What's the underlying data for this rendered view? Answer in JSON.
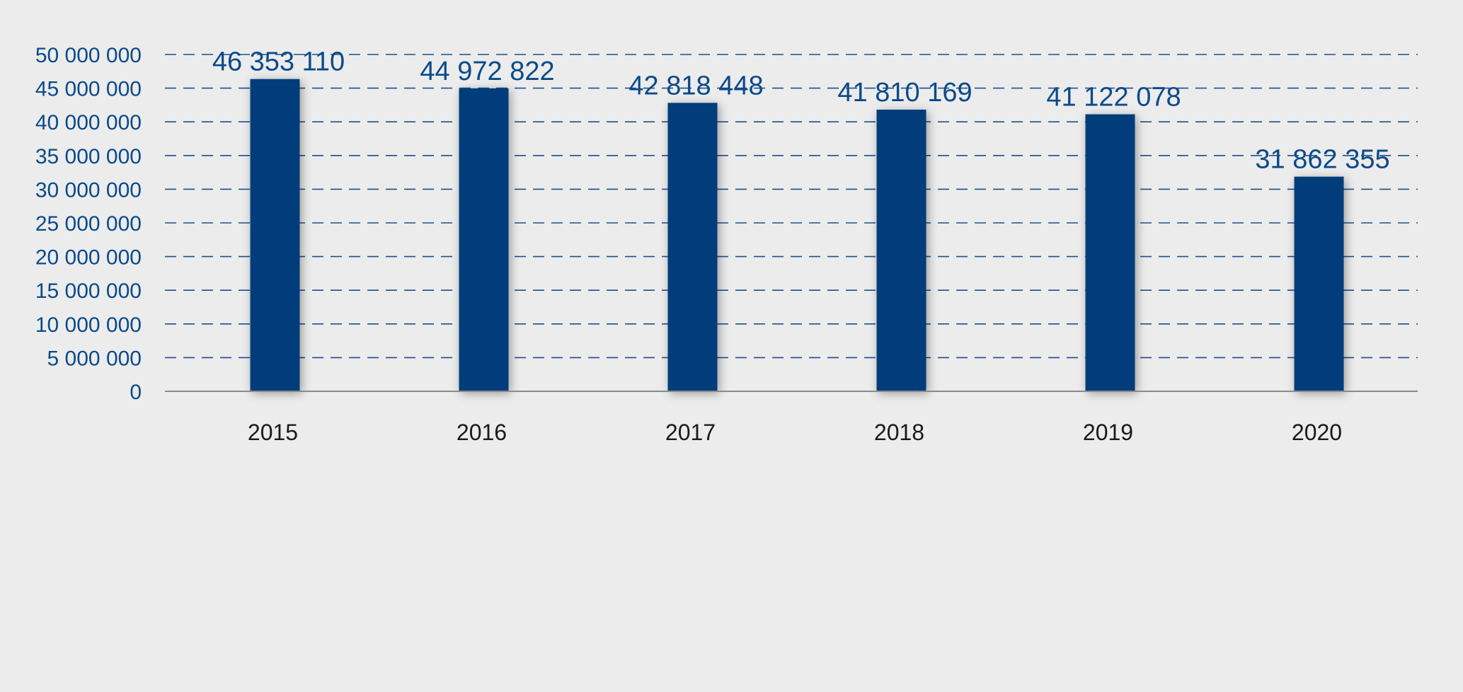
{
  "chart_data": {
    "type": "bar",
    "categories": [
      "2015",
      "2016",
      "2017",
      "2018",
      "2019",
      "2020"
    ],
    "values": [
      46353110,
      44972822,
      42818448,
      41810169,
      41122078,
      31862355
    ],
    "value_labels": [
      "46 353 110",
      "44 972 822",
      "42 818 448",
      "41 810 169",
      "41 122 078",
      "31 862 355"
    ],
    "y_ticks": [
      0,
      5000000,
      10000000,
      15000000,
      20000000,
      25000000,
      30000000,
      35000000,
      40000000,
      45000000,
      50000000
    ],
    "y_tick_labels": [
      "0",
      "5 000 000",
      "10 000 000",
      "15 000 000",
      "20 000 000",
      "25 000 000",
      "30 000 000",
      "35 000 000",
      "40 000 000",
      "45 000 000",
      "50 000 000"
    ],
    "ylim": [
      0,
      50000000
    ],
    "grid": true,
    "legend": "none",
    "colors": {
      "bar": "#003d7a",
      "grid": "#1f4f8a",
      "axis": "#8a8a8a",
      "y_label": "#0b4a8a",
      "x_label": "#1a1a1a",
      "data_label": "#0b4a8a",
      "background": "#ececec"
    }
  }
}
